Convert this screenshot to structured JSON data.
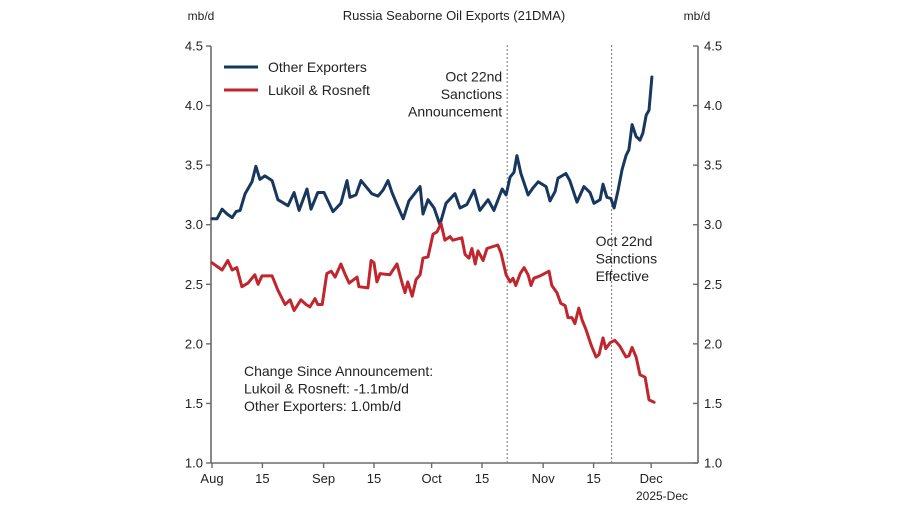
{
  "chart_data": {
    "type": "line",
    "title": "Russia Seaborne Oil Exports (21DMA)",
    "ylabel_left": "mb/d",
    "ylabel_right": "mb/d",
    "xlabel": "2025-Dec",
    "ylim": [
      1.0,
      4.5
    ],
    "yticks": [
      1.0,
      1.5,
      2.0,
      2.5,
      3.0,
      3.5,
      4.0,
      4.5
    ],
    "ytick_labels": [
      "1.0",
      "1.5",
      "2.0",
      "2.5",
      "3.0",
      "3.5",
      "4.0",
      "4.5"
    ],
    "x_unit": "days since Aug 1, 2025",
    "xlim": [
      0,
      135
    ],
    "xticks": [
      {
        "day": 0,
        "label": "Aug"
      },
      {
        "day": 14,
        "label": "15"
      },
      {
        "day": 31,
        "label": "Sep"
      },
      {
        "day": 45,
        "label": "15"
      },
      {
        "day": 61,
        "label": "Oct"
      },
      {
        "day": 75,
        "label": "15"
      },
      {
        "day": 92,
        "label": "Nov"
      },
      {
        "day": 106,
        "label": "15"
      },
      {
        "day": 122,
        "label": "Dec"
      }
    ],
    "grid": false,
    "legend": {
      "position": "top-left",
      "entries": [
        {
          "name": "Other Exporters",
          "color": "#17375e"
        },
        {
          "name": "Lukoil & Rosneft",
          "color": "#c0262d"
        }
      ]
    },
    "vlines": [
      {
        "day": 82,
        "label_lines": [
          "Oct 22nd",
          "Sanctions",
          "Announcement"
        ],
        "label_side": "left",
        "label_value": 4.2
      },
      {
        "day": 111,
        "label_lines": [
          "Oct 22nd",
          "Sanctions",
          "Effective"
        ],
        "label_side": "right",
        "label_value": 2.82
      }
    ],
    "annotation": {
      "lines": [
        "Change Since Announcement:",
        "Lukoil & Rosneft: -1.1mb/d",
        "Other Exporters: 1.0mb/d"
      ]
    },
    "series": [
      {
        "name": "Other Exporters",
        "color": "#17375e",
        "points": [
          [
            0,
            3.05
          ],
          [
            1.4,
            3.05
          ],
          [
            2.8,
            3.13
          ],
          [
            4.2,
            3.09
          ],
          [
            5.6,
            3.06
          ],
          [
            6.7,
            3.11
          ],
          [
            7.8,
            3.12
          ],
          [
            9.2,
            3.26
          ],
          [
            11.1,
            3.36
          ],
          [
            12.2,
            3.49
          ],
          [
            13.3,
            3.38
          ],
          [
            14.7,
            3.41
          ],
          [
            16.7,
            3.37
          ],
          [
            18.3,
            3.21
          ],
          [
            21.1,
            3.16
          ],
          [
            22.8,
            3.27
          ],
          [
            24.2,
            3.12
          ],
          [
            26.4,
            3.3
          ],
          [
            27.5,
            3.13
          ],
          [
            29.4,
            3.27
          ],
          [
            31.1,
            3.27
          ],
          [
            33.6,
            3.11
          ],
          [
            35.8,
            3.18
          ],
          [
            37.5,
            3.37
          ],
          [
            38.3,
            3.23
          ],
          [
            40.0,
            3.25
          ],
          [
            41.4,
            3.37
          ],
          [
            44.4,
            3.26
          ],
          [
            46.1,
            3.24
          ],
          [
            47.5,
            3.29
          ],
          [
            48.9,
            3.37
          ],
          [
            50.0,
            3.27
          ],
          [
            51.4,
            3.17
          ],
          [
            53.1,
            3.05
          ],
          [
            54.7,
            3.2
          ],
          [
            57.8,
            3.32
          ],
          [
            58.6,
            3.09
          ],
          [
            60.0,
            3.21
          ],
          [
            61.7,
            3.14
          ],
          [
            63.3,
            3.0
          ],
          [
            65.0,
            3.18
          ],
          [
            67.5,
            3.26
          ],
          [
            68.9,
            3.14
          ],
          [
            70.8,
            3.17
          ],
          [
            72.8,
            3.29
          ],
          [
            74.4,
            3.12
          ],
          [
            76.7,
            3.21
          ],
          [
            78.3,
            3.12
          ],
          [
            80.6,
            3.3
          ],
          [
            81.7,
            3.25
          ],
          [
            82.8,
            3.4
          ],
          [
            83.9,
            3.44
          ],
          [
            84.7,
            3.58
          ],
          [
            85.8,
            3.43
          ],
          [
            87.8,
            3.25
          ],
          [
            89.2,
            3.31
          ],
          [
            90.6,
            3.36
          ],
          [
            92.8,
            3.32
          ],
          [
            93.9,
            3.2
          ],
          [
            95.3,
            3.28
          ],
          [
            96.1,
            3.39
          ],
          [
            98.3,
            3.43
          ],
          [
            99.4,
            3.37
          ],
          [
            101.4,
            3.19
          ],
          [
            103.3,
            3.32
          ],
          [
            105.0,
            3.27
          ],
          [
            106.1,
            3.18
          ],
          [
            107.8,
            3.21
          ],
          [
            108.6,
            3.34
          ],
          [
            109.7,
            3.23
          ],
          [
            110.8,
            3.22
          ],
          [
            111.7,
            3.14
          ],
          [
            112.8,
            3.29
          ],
          [
            113.9,
            3.46
          ],
          [
            115.0,
            3.58
          ],
          [
            115.8,
            3.63
          ],
          [
            116.7,
            3.84
          ],
          [
            117.8,
            3.74
          ],
          [
            118.9,
            3.71
          ],
          [
            119.7,
            3.77
          ],
          [
            120.6,
            3.92
          ],
          [
            121.4,
            3.96
          ],
          [
            122.2,
            4.24
          ]
        ]
      },
      {
        "name": "Lukoil & Rosneft",
        "color": "#c0262d",
        "points": [
          [
            0,
            2.68
          ],
          [
            1.4,
            2.65
          ],
          [
            2.8,
            2.62
          ],
          [
            4.4,
            2.7
          ],
          [
            5.6,
            2.62
          ],
          [
            6.9,
            2.64
          ],
          [
            8.3,
            2.48
          ],
          [
            10.0,
            2.51
          ],
          [
            11.9,
            2.58
          ],
          [
            12.8,
            2.5
          ],
          [
            13.9,
            2.57
          ],
          [
            16.7,
            2.57
          ],
          [
            18.3,
            2.45
          ],
          [
            20.3,
            2.33
          ],
          [
            21.7,
            2.37
          ],
          [
            22.8,
            2.28
          ],
          [
            24.7,
            2.37
          ],
          [
            26.1,
            2.33
          ],
          [
            27.2,
            2.31
          ],
          [
            28.6,
            2.38
          ],
          [
            29.4,
            2.33
          ],
          [
            30.6,
            2.33
          ],
          [
            31.9,
            2.59
          ],
          [
            33.1,
            2.61
          ],
          [
            34.2,
            2.56
          ],
          [
            35.8,
            2.67
          ],
          [
            36.9,
            2.59
          ],
          [
            38.1,
            2.51
          ],
          [
            40.3,
            2.56
          ],
          [
            40.8,
            2.48
          ],
          [
            43.3,
            2.47
          ],
          [
            44.2,
            2.7
          ],
          [
            45.0,
            2.68
          ],
          [
            45.8,
            2.52
          ],
          [
            46.7,
            2.59
          ],
          [
            49.4,
            2.58
          ],
          [
            51.4,
            2.67
          ],
          [
            52.8,
            2.51
          ],
          [
            53.6,
            2.43
          ],
          [
            54.4,
            2.52
          ],
          [
            55.6,
            2.4
          ],
          [
            56.7,
            2.54
          ],
          [
            57.8,
            2.58
          ],
          [
            58.6,
            2.72
          ],
          [
            60.0,
            2.73
          ],
          [
            61.4,
            2.92
          ],
          [
            62.5,
            2.94
          ],
          [
            63.6,
            3.01
          ],
          [
            64.7,
            2.87
          ],
          [
            66.1,
            2.9
          ],
          [
            66.9,
            2.87
          ],
          [
            69.4,
            2.89
          ],
          [
            70.3,
            2.75
          ],
          [
            71.4,
            2.72
          ],
          [
            72.2,
            2.8
          ],
          [
            73.1,
            2.67
          ],
          [
            73.9,
            2.78
          ],
          [
            75.3,
            2.7
          ],
          [
            76.4,
            2.8
          ],
          [
            79.4,
            2.83
          ],
          [
            80.3,
            2.76
          ],
          [
            81.7,
            2.58
          ],
          [
            82.8,
            2.52
          ],
          [
            83.6,
            2.55
          ],
          [
            84.4,
            2.49
          ],
          [
            85.6,
            2.59
          ],
          [
            86.7,
            2.64
          ],
          [
            87.8,
            2.58
          ],
          [
            88.6,
            2.49
          ],
          [
            89.4,
            2.55
          ],
          [
            91.1,
            2.57
          ],
          [
            93.6,
            2.61
          ],
          [
            94.4,
            2.49
          ],
          [
            95.8,
            2.43
          ],
          [
            96.9,
            2.34
          ],
          [
            98.1,
            2.32
          ],
          [
            98.9,
            2.22
          ],
          [
            100.0,
            2.22
          ],
          [
            100.8,
            2.17
          ],
          [
            101.9,
            2.3
          ],
          [
            102.8,
            2.2
          ],
          [
            103.9,
            2.12
          ],
          [
            105.3,
            1.99
          ],
          [
            106.7,
            1.89
          ],
          [
            107.5,
            1.91
          ],
          [
            108.6,
            2.05
          ],
          [
            109.4,
            1.96
          ],
          [
            110.6,
            2.01
          ],
          [
            111.9,
            2.03
          ],
          [
            113.3,
            1.98
          ],
          [
            115.0,
            1.89
          ],
          [
            115.8,
            1.9
          ],
          [
            116.7,
            1.97
          ],
          [
            117.8,
            1.89
          ],
          [
            118.9,
            1.74
          ],
          [
            120.3,
            1.72
          ],
          [
            121.4,
            1.53
          ],
          [
            122.8,
            1.51
          ]
        ]
      }
    ]
  }
}
